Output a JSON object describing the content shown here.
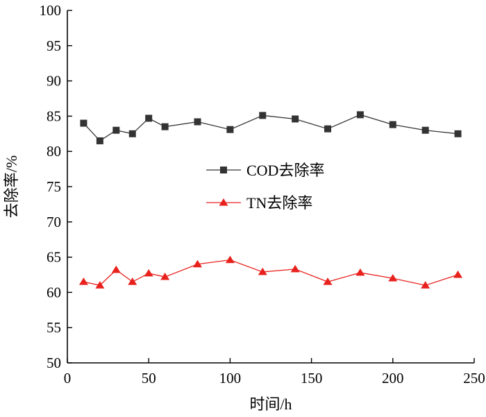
{
  "chart_data": {
    "type": "line",
    "title": "",
    "xlabel": "时间/h",
    "ylabel": "去除率/%",
    "xlim": [
      0,
      250
    ],
    "ylim": [
      50,
      100
    ],
    "xticks": [
      0,
      50,
      100,
      150,
      200,
      250
    ],
    "yticks": [
      50,
      55,
      60,
      65,
      70,
      75,
      80,
      85,
      90,
      95,
      100
    ],
    "grid": false,
    "legend_position": "center-right",
    "series": [
      {
        "name": "COD去除率",
        "color": "#333333",
        "marker": "square",
        "x": [
          10,
          20,
          30,
          40,
          50,
          60,
          80,
          100,
          120,
          140,
          160,
          180,
          200,
          220,
          240
        ],
        "y": [
          84.0,
          81.5,
          83.0,
          82.5,
          84.7,
          83.5,
          84.2,
          83.1,
          85.1,
          84.6,
          83.2,
          85.2,
          83.8,
          83.0,
          82.5
        ]
      },
      {
        "name": "TN去除率",
        "color": "#e8211d",
        "marker": "triangle",
        "x": [
          10,
          20,
          30,
          40,
          50,
          60,
          80,
          100,
          120,
          140,
          160,
          180,
          200,
          220,
          240
        ],
        "y": [
          61.5,
          61.0,
          63.2,
          61.5,
          62.7,
          62.2,
          64.0,
          64.6,
          62.9,
          63.3,
          61.5,
          62.8,
          62.0,
          61.0,
          62.5
        ]
      }
    ]
  }
}
